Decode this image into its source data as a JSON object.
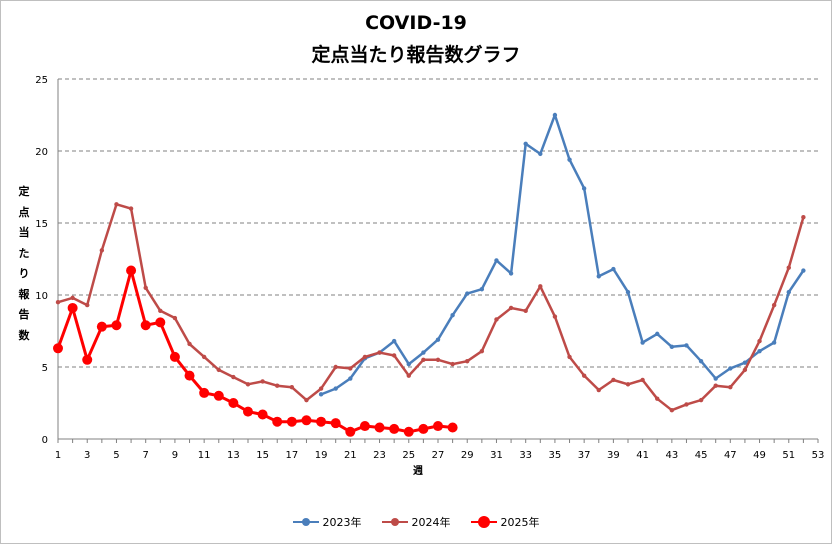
{
  "chart_data": {
    "type": "line",
    "title": "COVID-19",
    "subtitle": "定点当たり報告数グラフ",
    "xlabel": "週",
    "ylabel": "定点当たり報告数",
    "xlim": [
      1,
      53
    ],
    "ylim": [
      0,
      25
    ],
    "x_ticks": [
      1,
      3,
      5,
      7,
      9,
      11,
      13,
      15,
      17,
      19,
      21,
      23,
      25,
      27,
      29,
      31,
      33,
      35,
      37,
      39,
      41,
      43,
      45,
      47,
      49,
      51,
      53
    ],
    "y_ticks": [
      0,
      5,
      10,
      15,
      20,
      25
    ],
    "grid": "horizontal-dashed",
    "legend": "bottom",
    "series": [
      {
        "name": "2023年",
        "color": "#4a7ebb",
        "marker": "small",
        "x": [
          19,
          20,
          21,
          22,
          23,
          24,
          25,
          26,
          27,
          28,
          29,
          30,
          31,
          32,
          33,
          34,
          35,
          36,
          37,
          38,
          39,
          40,
          41,
          42,
          43,
          44,
          45,
          46,
          47,
          48,
          49,
          50,
          51,
          52
        ],
        "values": [
          3.1,
          3.5,
          4.2,
          5.6,
          6.0,
          6.8,
          5.2,
          6.0,
          6.9,
          8.6,
          10.1,
          10.4,
          12.4,
          11.5,
          20.5,
          19.8,
          22.5,
          19.4,
          17.4,
          11.3,
          11.8,
          10.2,
          6.7,
          7.3,
          6.4,
          6.5,
          5.4,
          4.2,
          4.9,
          5.3,
          6.1,
          6.7,
          10.2,
          11.7
        ]
      },
      {
        "name": "2024年",
        "color": "#be4b48",
        "marker": "small",
        "x": [
          1,
          2,
          3,
          4,
          5,
          6,
          7,
          8,
          9,
          10,
          11,
          12,
          13,
          14,
          15,
          16,
          17,
          18,
          19,
          20,
          21,
          22,
          23,
          24,
          25,
          26,
          27,
          28,
          29,
          30,
          31,
          32,
          33,
          34,
          35,
          36,
          37,
          38,
          39,
          40,
          41,
          42,
          43,
          44,
          45,
          46,
          47,
          48,
          49,
          50,
          51,
          52
        ],
        "values": [
          9.5,
          9.8,
          9.3,
          13.1,
          16.3,
          16.0,
          10.5,
          8.9,
          8.4,
          6.6,
          5.7,
          4.8,
          4.3,
          3.8,
          4.0,
          3.7,
          3.6,
          2.7,
          3.5,
          5.0,
          4.9,
          5.7,
          6.0,
          5.8,
          4.4,
          5.5,
          5.5,
          5.2,
          5.4,
          6.1,
          8.3,
          9.1,
          8.9,
          10.6,
          8.5,
          5.7,
          4.4,
          3.4,
          4.1,
          3.8,
          4.1,
          2.8,
          2.0,
          2.4,
          2.7,
          3.7,
          3.6,
          4.8,
          6.8,
          9.3,
          11.9,
          15.4
        ]
      },
      {
        "name": "2025年",
        "color": "#ff0000",
        "marker": "large",
        "x": [
          1,
          2,
          3,
          4,
          5,
          6,
          7,
          8,
          9,
          10,
          11,
          12,
          13,
          14,
          15,
          16,
          17,
          18,
          19,
          20,
          21,
          22,
          23,
          24,
          25,
          26,
          27,
          28
        ],
        "values": [
          6.3,
          9.1,
          5.5,
          7.8,
          7.9,
          11.7,
          7.9,
          8.1,
          5.7,
          4.4,
          3.2,
          3.0,
          2.5,
          1.9,
          1.7,
          1.2,
          1.2,
          1.3,
          1.2,
          1.1,
          0.5,
          0.9,
          0.8,
          0.7,
          0.5,
          0.7,
          0.9,
          0.8
        ]
      }
    ]
  }
}
